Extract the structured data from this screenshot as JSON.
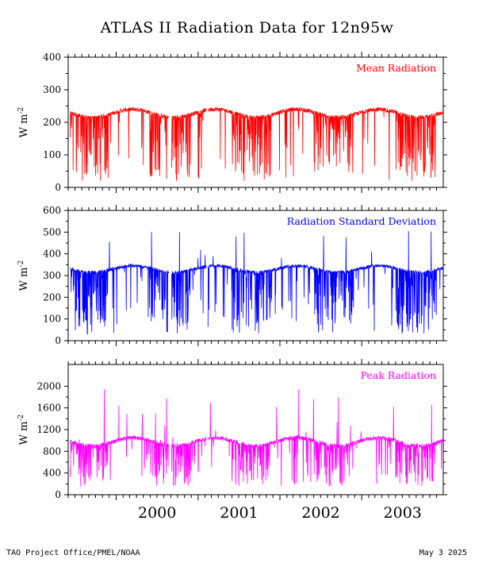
{
  "title": "ATLAS II Radiation Data for 12n95w",
  "footer": {
    "left": "TAO Project Office/PMEL/NOAA",
    "right": "May  3 2025"
  },
  "x_axis": {
    "year_labels": [
      "2000",
      "2001",
      "2002",
      "2003"
    ],
    "start": "1999-06-01",
    "end": "2003-12-31"
  },
  "chart_data": [
    {
      "type": "line",
      "panel_label": "Mean Radiation",
      "ylabel": "W m-2",
      "ylim": [
        0,
        400
      ],
      "yticks": [
        0,
        100,
        200,
        300,
        400
      ],
      "color": "#ff0000",
      "series": [
        {
          "segments": [
            [
              "1999-06-10",
              "2000-08-22"
            ],
            [
              "2000-09-05",
              "2001-02-06"
            ],
            [
              "2001-02-14",
              "2003-12-31"
            ]
          ]
        }
      ],
      "baseline": {
        "typical_high": 240,
        "typical_low": 215,
        "dip_min": 20
      }
    },
    {
      "type": "line",
      "panel_label": "Radiation Standard Deviation",
      "ylabel": "W m-2",
      "ylim": [
        0,
        600
      ],
      "yticks": [
        0,
        100,
        200,
        300,
        400,
        500,
        600
      ],
      "color": "#0000ff",
      "series": [
        {
          "segments": [
            [
              "1999-06-10",
              "2000-08-22"
            ],
            [
              "2000-09-05",
              "2001-02-06"
            ],
            [
              "2001-02-14",
              "2003-12-31"
            ]
          ]
        }
      ],
      "baseline": {
        "typical_high": 345,
        "typical_low": 315,
        "dip_min": 30,
        "peak_max": 510
      }
    },
    {
      "type": "line",
      "panel_label": "Peak Radiation",
      "ylabel": "W m-2",
      "ylim": [
        0,
        2400
      ],
      "yticks": [
        0,
        400,
        800,
        1200,
        1600,
        2000
      ],
      "color": "#ff00ff",
      "series": [
        {
          "segments": [
            [
              "1999-06-10",
              "2000-08-22"
            ],
            [
              "2000-09-05",
              "2001-02-06"
            ],
            [
              "2001-02-14",
              "2003-12-31"
            ]
          ]
        }
      ],
      "baseline": {
        "typical_high": 1050,
        "typical_low": 900,
        "dip_min": 150,
        "peak_max": 1980
      }
    }
  ]
}
